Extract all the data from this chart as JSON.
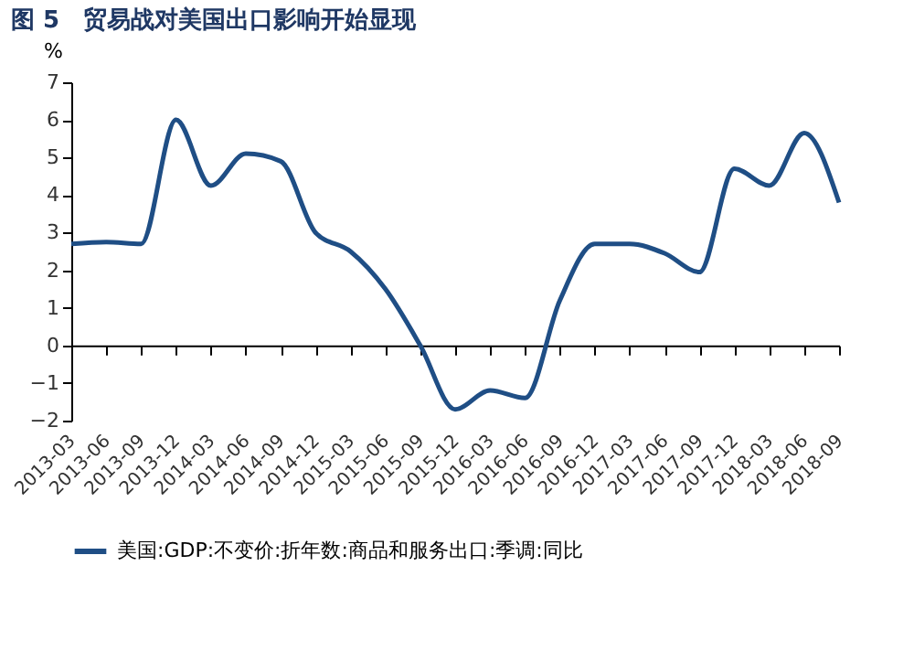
{
  "chart_data": {
    "type": "line",
    "title": "图 5　贸易战对美国出口影响开始显现",
    "ylabel": "%",
    "categories": [
      "2013-03",
      "2013-06",
      "2013-09",
      "2013-12",
      "2014-03",
      "2014-06",
      "2014-09",
      "2014-12",
      "2015-03",
      "2015-06",
      "2015-09",
      "2015-12",
      "2016-03",
      "2016-06",
      "2016-09",
      "2016-12",
      "2017-03",
      "2017-06",
      "2017-09",
      "2017-12",
      "2018-03",
      "2018-06",
      "2018-09"
    ],
    "series": [
      {
        "name": "美国:GDP:不变价:折年数:商品和服务出口:季调:同比",
        "color": "#1f4e85",
        "values": [
          2.7,
          2.75,
          2.7,
          6.0,
          4.25,
          5.1,
          4.9,
          3.0,
          2.5,
          1.5,
          0.0,
          -1.7,
          -1.2,
          -1.4,
          1.2,
          2.7,
          2.7,
          2.45,
          1.95,
          4.7,
          4.25,
          5.65,
          3.8
        ]
      }
    ],
    "ylim": [
      -2,
      7
    ],
    "yticks": [
      -2,
      -1,
      0,
      1,
      2,
      3,
      4,
      5,
      6,
      7
    ],
    "legend": "bottom",
    "marker": "none",
    "line_style": "solid"
  }
}
